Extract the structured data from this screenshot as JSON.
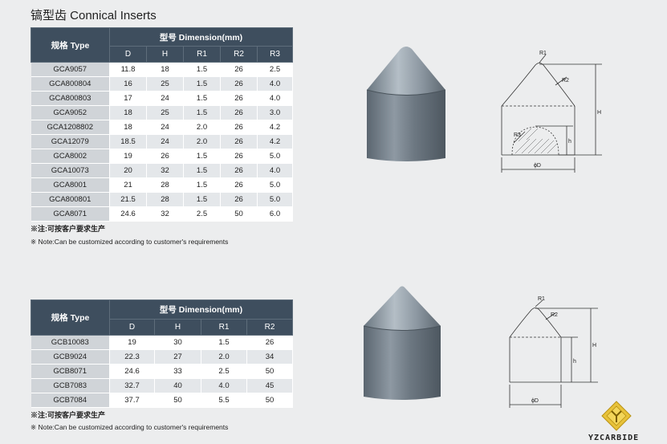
{
  "title": "镐型齿 Connical Inserts",
  "table1": {
    "type_header": "规格 Type",
    "dim_header": "型号 Dimension(mm)",
    "columns": [
      "D",
      "H",
      "R1",
      "R2",
      "R3"
    ],
    "rows": [
      {
        "type": "GCA9057",
        "values": [
          "11.8",
          "18",
          "1.5",
          "26",
          "2.5"
        ]
      },
      {
        "type": "GCA800804",
        "values": [
          "16",
          "25",
          "1.5",
          "26",
          "4.0"
        ]
      },
      {
        "type": "GCA800803",
        "values": [
          "17",
          "24",
          "1.5",
          "26",
          "4.0"
        ]
      },
      {
        "type": "GCA9052",
        "values": [
          "18",
          "25",
          "1.5",
          "26",
          "3.0"
        ]
      },
      {
        "type": "GCA1208802",
        "values": [
          "18",
          "24",
          "2.0",
          "26",
          "4.2"
        ]
      },
      {
        "type": "GCA12079",
        "values": [
          "18.5",
          "24",
          "2.0",
          "26",
          "4.2"
        ]
      },
      {
        "type": "GCA8002",
        "values": [
          "19",
          "26",
          "1.5",
          "26",
          "5.0"
        ]
      },
      {
        "type": "GCA10073",
        "values": [
          "20",
          "32",
          "1.5",
          "26",
          "4.0"
        ]
      },
      {
        "type": "GCA8001",
        "values": [
          "21",
          "28",
          "1.5",
          "26",
          "5.0"
        ]
      },
      {
        "type": "GCA800801",
        "values": [
          "21.5",
          "28",
          "1.5",
          "26",
          "5.0"
        ]
      },
      {
        "type": "GCA8071",
        "values": [
          "24.6",
          "32",
          "2.5",
          "50",
          "6.0"
        ]
      }
    ]
  },
  "table2": {
    "type_header": "规格 Type",
    "dim_header": "型号 Dimension(mm)",
    "columns": [
      "D",
      "H",
      "R1",
      "R2"
    ],
    "rows": [
      {
        "type": "GCB10083",
        "values": [
          "19",
          "30",
          "1.5",
          "26"
        ]
      },
      {
        "type": "GCB9024",
        "values": [
          "22.3",
          "27",
          "2.0",
          "34"
        ]
      },
      {
        "type": "GCB8071",
        "values": [
          "24.6",
          "33",
          "2.5",
          "50"
        ]
      },
      {
        "type": "GCB7083",
        "values": [
          "32.7",
          "40",
          "4.0",
          "45"
        ]
      },
      {
        "type": "GCB7084",
        "values": [
          "37.7",
          "50",
          "5.5",
          "50"
        ]
      }
    ]
  },
  "notes": {
    "cn": "※注:可按客户要求生产",
    "en": "※ Note:Can be customized according to customer's requirements"
  },
  "drawing1": {
    "r1": "R1",
    "r2": "R2",
    "r3": "R3",
    "h_big": "H",
    "h_small": "h",
    "d": "ϕD"
  },
  "drawing2": {
    "r1": "R1",
    "r2": "R2",
    "h_big": "H",
    "h_small": "h",
    "d": "ϕD"
  },
  "logo": {
    "text": "YZCARBIDE"
  }
}
